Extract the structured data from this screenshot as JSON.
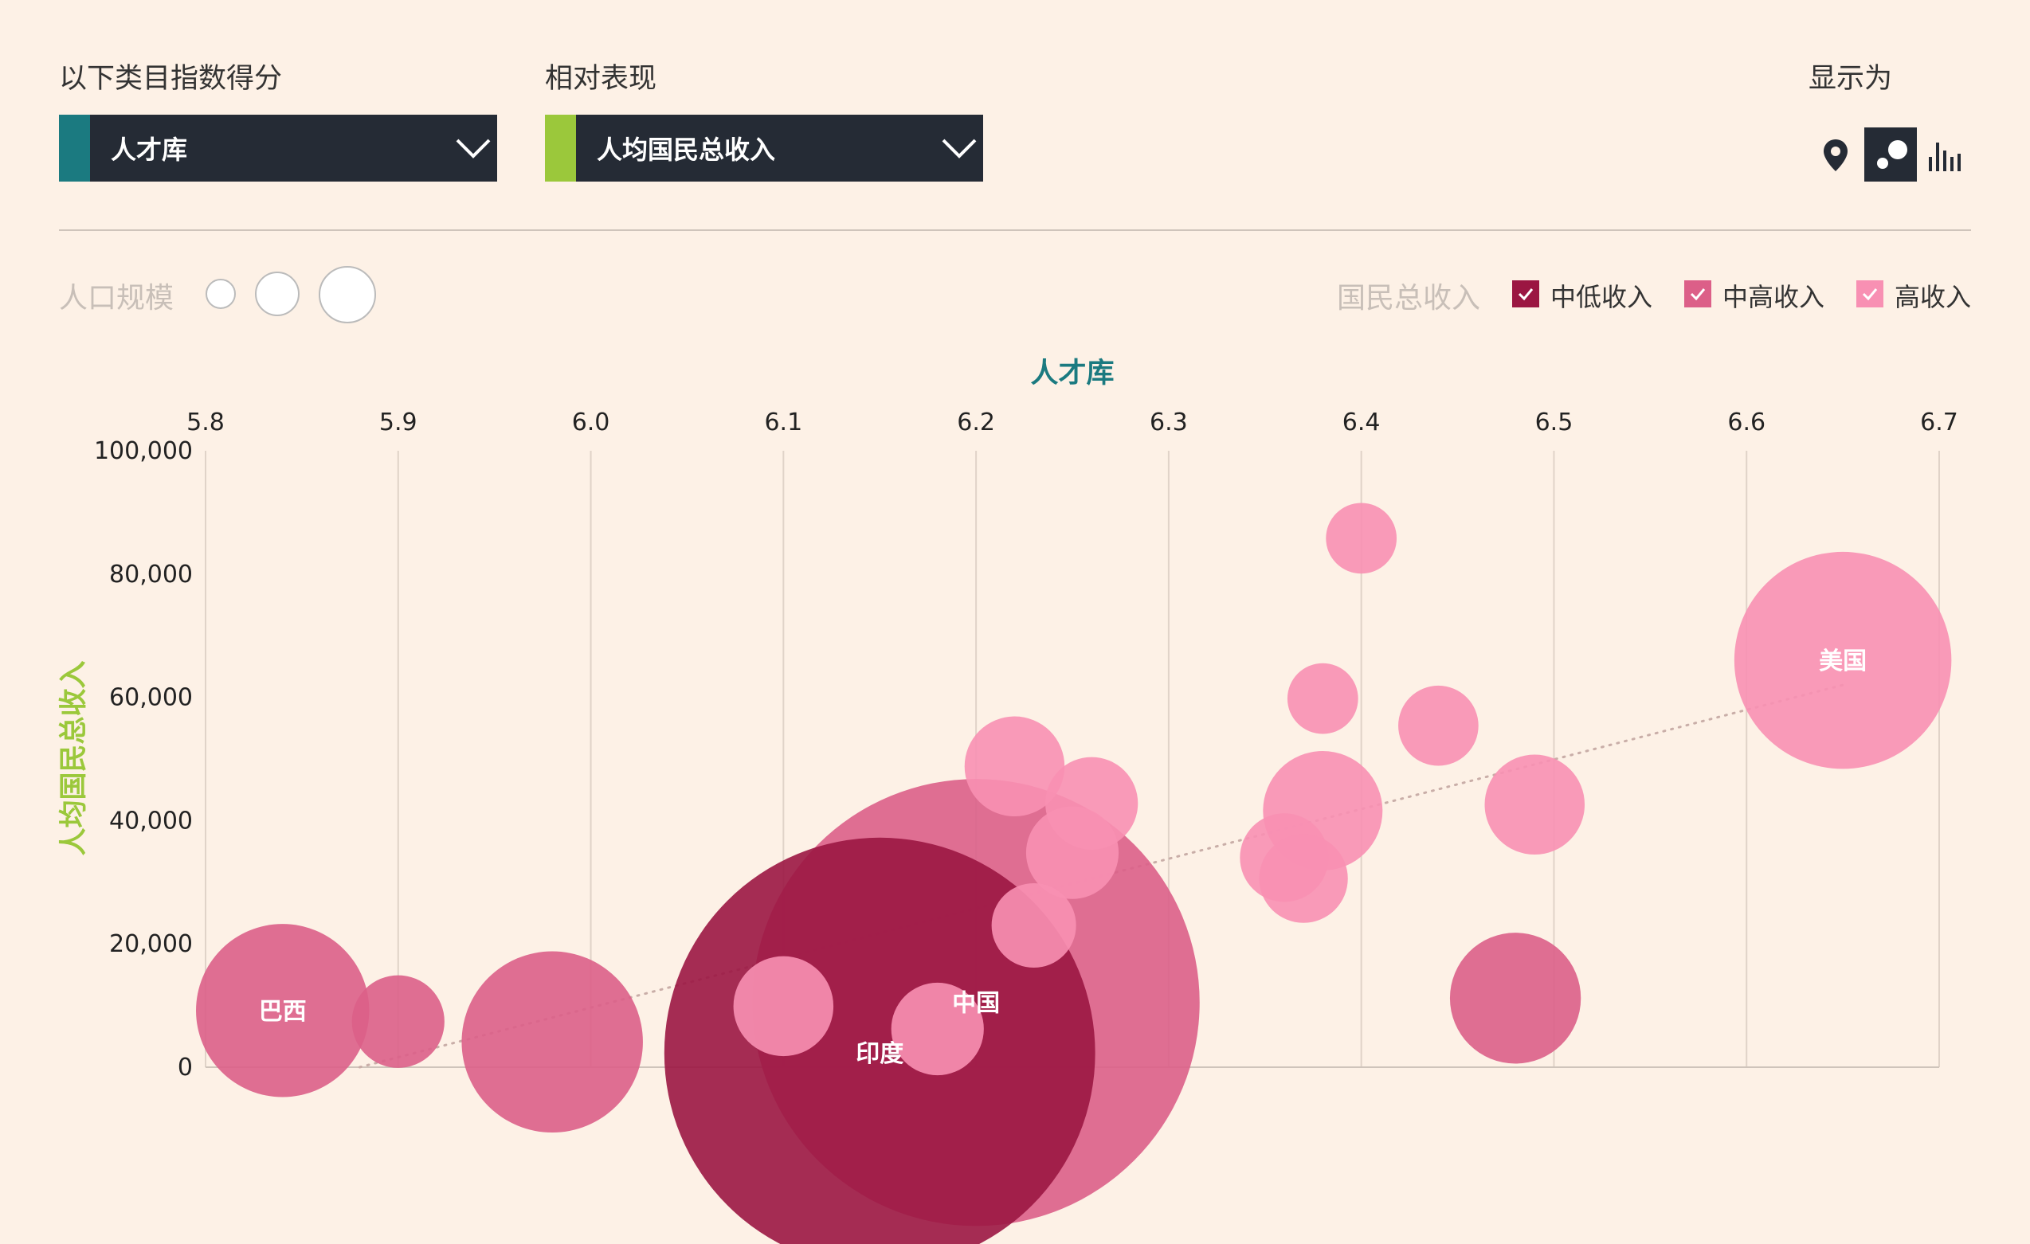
{
  "controls": {
    "category_label": "以下类目指数得分",
    "category_value": "人才库",
    "category_color": "#1b7a80",
    "relative_label": "相对表现",
    "relative_value": "人均国民总收入",
    "relative_color": "#9bc83b",
    "display_label": "显示为",
    "views": [
      {
        "icon": "map-pin-icon",
        "active": false
      },
      {
        "icon": "bubble-chart-icon",
        "active": true
      },
      {
        "icon": "bar-chart-icon",
        "active": false
      }
    ]
  },
  "legend": {
    "population_label": "人口规模",
    "income_label": "国民总收入",
    "groups": [
      {
        "label": "中低收入",
        "color": "#9b1642",
        "checked": true
      },
      {
        "label": "中高收入",
        "color": "#dc5f88",
        "checked": true
      },
      {
        "label": "高收入",
        "color": "#f890b3",
        "checked": true
      }
    ]
  },
  "chart_data": {
    "type": "scatter",
    "title": "",
    "xlabel": "人才库",
    "ylabel": "人均国民总收入",
    "xlim": [
      5.8,
      6.7
    ],
    "ylim": [
      0,
      100000
    ],
    "x_ticks": [
      "5.8",
      "5.9",
      "6.0",
      "6.1",
      "6.2",
      "6.3",
      "6.4",
      "6.5",
      "6.6",
      "6.7"
    ],
    "y_ticks": [
      "0",
      "20,000",
      "40,000",
      "60,000",
      "80,000",
      "100,000"
    ],
    "x_tick_values": [
      5.8,
      5.9,
      6.0,
      6.1,
      6.2,
      6.3,
      6.4,
      6.5,
      6.6,
      6.7
    ],
    "y_tick_values": [
      0,
      20000,
      40000,
      60000,
      80000,
      100000
    ],
    "grid": true,
    "trendline": {
      "x": [
        5.88,
        6.65
      ],
      "y": [
        0,
        62000
      ]
    },
    "points": [
      {
        "x": 6.2,
        "y": 10500,
        "size": 1400,
        "group": 1,
        "label": "中国"
      },
      {
        "x": 6.15,
        "y": 2300,
        "size": 1300,
        "group": 0,
        "label": "印度"
      },
      {
        "x": 5.84,
        "y": 9200,
        "size": 210,
        "group": 1,
        "label": "巴西"
      },
      {
        "x": 6.65,
        "y": 66000,
        "size": 330,
        "group": 2,
        "label": "美国"
      },
      {
        "x": 5.9,
        "y": 7400,
        "size": 60,
        "group": 1,
        "label": ""
      },
      {
        "x": 5.98,
        "y": 4100,
        "size": 230,
        "group": 1,
        "label": ""
      },
      {
        "x": 6.1,
        "y": 9900,
        "size": 70,
        "group": 2,
        "label": ""
      },
      {
        "x": 6.18,
        "y": 6200,
        "size": 60,
        "group": 2,
        "label": ""
      },
      {
        "x": 6.22,
        "y": 48800,
        "size": 70,
        "group": 2,
        "label": ""
      },
      {
        "x": 6.23,
        "y": 23000,
        "size": 50,
        "group": 2,
        "label": ""
      },
      {
        "x": 6.25,
        "y": 34800,
        "size": 60,
        "group": 2,
        "label": ""
      },
      {
        "x": 6.26,
        "y": 42800,
        "size": 60,
        "group": 2,
        "label": ""
      },
      {
        "x": 6.36,
        "y": 34000,
        "size": 55,
        "group": 2,
        "label": ""
      },
      {
        "x": 6.37,
        "y": 30600,
        "size": 55,
        "group": 2,
        "label": ""
      },
      {
        "x": 6.38,
        "y": 41600,
        "size": 100,
        "group": 2,
        "label": ""
      },
      {
        "x": 6.38,
        "y": 59800,
        "size": 35,
        "group": 2,
        "label": ""
      },
      {
        "x": 6.4,
        "y": 85800,
        "size": 35,
        "group": 2,
        "label": ""
      },
      {
        "x": 6.44,
        "y": 55400,
        "size": 45,
        "group": 2,
        "label": ""
      },
      {
        "x": 6.48,
        "y": 11200,
        "size": 120,
        "group": 1,
        "label": ""
      },
      {
        "x": 6.49,
        "y": 42600,
        "size": 70,
        "group": 2,
        "label": ""
      }
    ]
  }
}
